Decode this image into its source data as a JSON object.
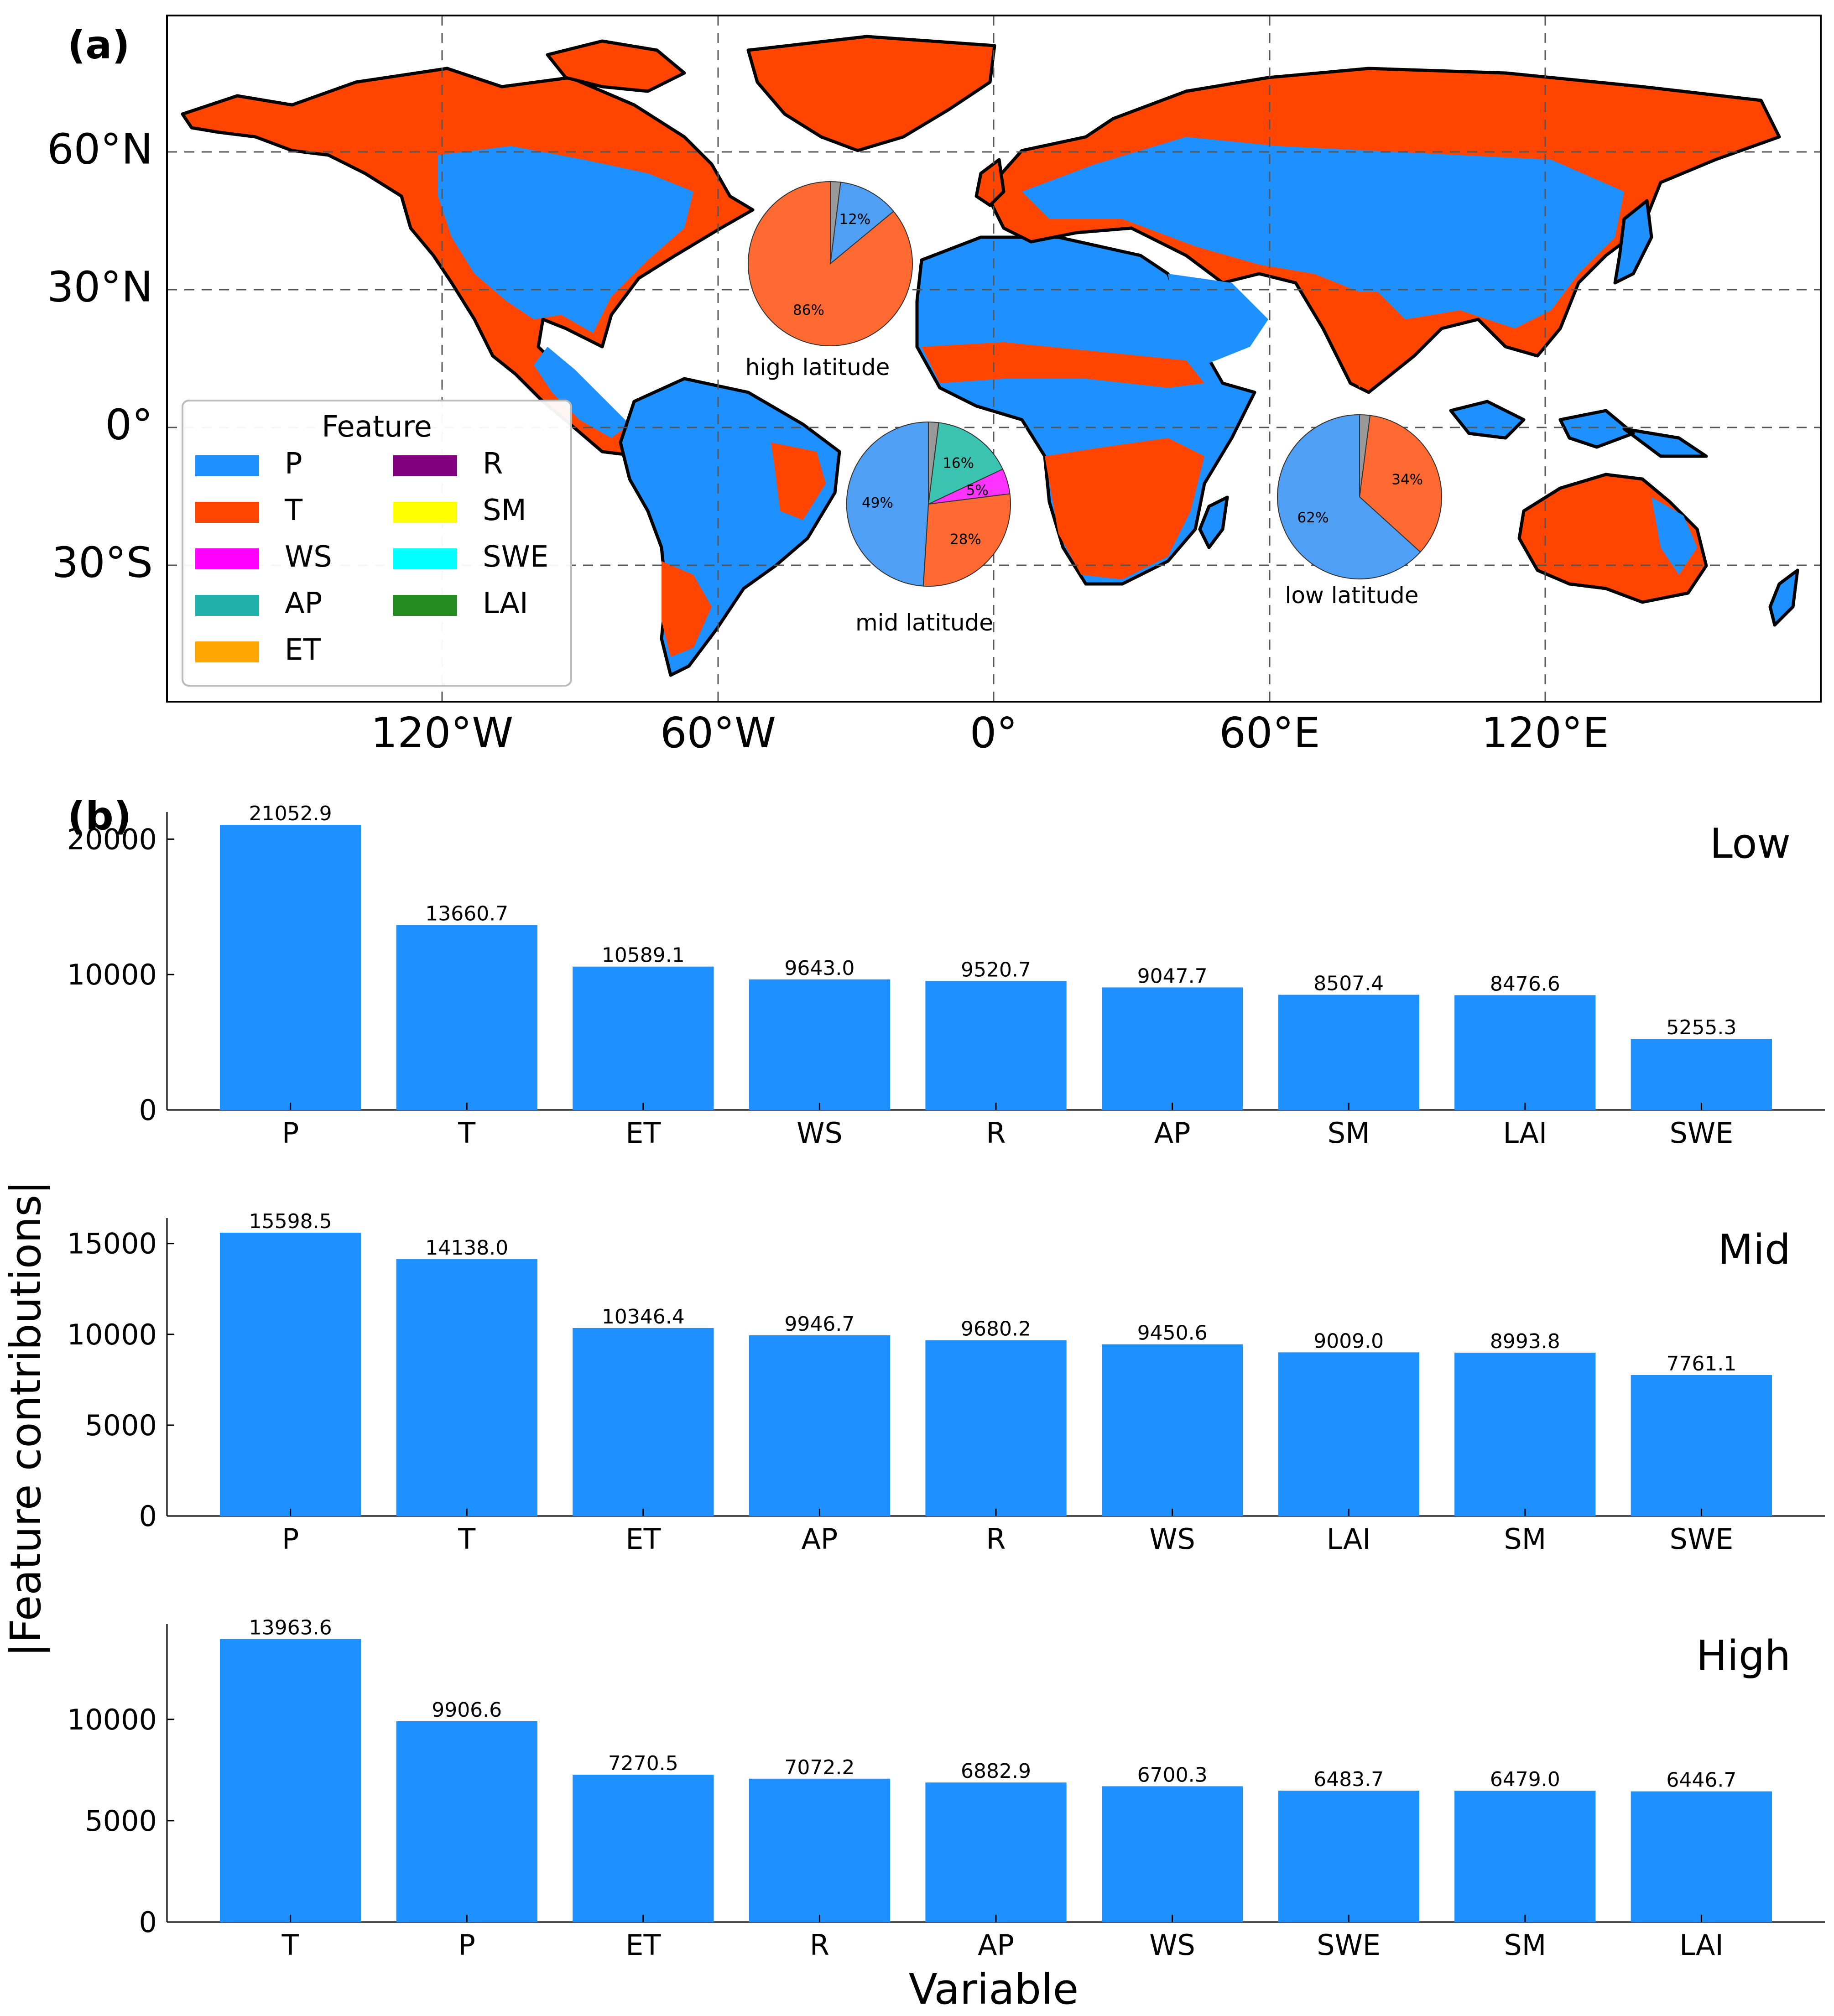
{
  "panel_a": {
    "letter": "(a)",
    "lat_labels": [
      "60°N",
      "30°N",
      "0°",
      "30°S"
    ],
    "lon_labels": [
      "120°W",
      "60°W",
      "0°",
      "60°E",
      "120°E"
    ],
    "legend": {
      "title": "Feature",
      "items": [
        {
          "label": "P",
          "color": "#1e90ff"
        },
        {
          "label": "T",
          "color": "#ff4500"
        },
        {
          "label": "WS",
          "color": "#ff00ff"
        },
        {
          "label": "AP",
          "color": "#20b2aa"
        },
        {
          "label": "ET",
          "color": "#ffa500"
        },
        {
          "label": "R",
          "color": "#800080"
        },
        {
          "label": "SM",
          "color": "#ffff00"
        },
        {
          "label": "SWE",
          "color": "#00ffff"
        },
        {
          "label": "LAI",
          "color": "#228b22"
        }
      ]
    },
    "pies": [
      {
        "name": "high latitude",
        "slices": [
          {
            "label": "12%",
            "value": 12,
            "color": "#4f9ff4"
          },
          {
            "label": "86%",
            "value": 86,
            "color": "#ff6a33"
          },
          {
            "label": "",
            "value": 2,
            "color": "#999999"
          }
        ]
      },
      {
        "name": "mid latitude",
        "slices": [
          {
            "label": "16%",
            "value": 16,
            "color": "#3cc2b0"
          },
          {
            "label": "5%",
            "value": 5,
            "color": "#ff33ff"
          },
          {
            "label": "28%",
            "value": 28,
            "color": "#ff6a33"
          },
          {
            "label": "49%",
            "value": 49,
            "color": "#4f9ff4"
          },
          {
            "label": "",
            "value": 2,
            "color": "#999999"
          }
        ]
      },
      {
        "name": "low latitude",
        "slices": [
          {
            "label": "34%",
            "value": 34,
            "color": "#ff6a33"
          },
          {
            "label": "62%",
            "value": 62,
            "color": "#4f9ff4"
          },
          {
            "label": "",
            "value": 2,
            "color": "#999999"
          }
        ]
      }
    ]
  },
  "panel_b": {
    "letter": "(b)",
    "ylabel": "|Feature contributions|",
    "xlabel": "Variable"
  },
  "chart_data": [
    {
      "type": "bar",
      "title": "Low",
      "xlabel": "",
      "ylabel": "|Feature contributions|",
      "categories": [
        "P",
        "T",
        "ET",
        "WS",
        "R",
        "AP",
        "SM",
        "LAI",
        "SWE"
      ],
      "values": [
        21052.9,
        13660.7,
        10589.1,
        9643.0,
        9520.7,
        9047.7,
        8507.4,
        8476.6,
        5255.3
      ],
      "value_labels": [
        "21052.9",
        "13660.7",
        "10589.1",
        "9643.0",
        "9520.7",
        "9047.7",
        "8507.4",
        "8476.6",
        "5255.3"
      ],
      "yticks": [
        0,
        10000,
        20000
      ],
      "ytick_labels": [
        "0",
        "10000",
        "20000"
      ],
      "ylim": [
        0,
        22000
      ],
      "color": "#1e90ff"
    },
    {
      "type": "bar",
      "title": "Mid",
      "xlabel": "",
      "ylabel": "|Feature contributions|",
      "categories": [
        "P",
        "T",
        "ET",
        "AP",
        "R",
        "WS",
        "LAI",
        "SM",
        "SWE"
      ],
      "values": [
        15598.5,
        14138.0,
        10346.4,
        9946.7,
        9680.2,
        9450.6,
        9009.0,
        8993.8,
        7761.1
      ],
      "value_labels": [
        "15598.5",
        "14138.0",
        "10346.4",
        "9946.7",
        "9680.2",
        "9450.6",
        "9009.0",
        "8993.8",
        "7761.1"
      ],
      "yticks": [
        0,
        5000,
        10000,
        15000
      ],
      "ytick_labels": [
        "0",
        "5000",
        "10000",
        "15000"
      ],
      "ylim": [
        0,
        16400
      ],
      "color": "#1e90ff"
    },
    {
      "type": "bar",
      "title": "High",
      "xlabel": "Variable",
      "ylabel": "|Feature contributions|",
      "categories": [
        "T",
        "P",
        "ET",
        "R",
        "AP",
        "WS",
        "SWE",
        "SM",
        "LAI"
      ],
      "values": [
        13963.6,
        9906.6,
        7270.5,
        7072.2,
        6882.9,
        6700.3,
        6483.7,
        6479.0,
        6446.7
      ],
      "value_labels": [
        "13963.6",
        "9906.6",
        "7270.5",
        "7072.2",
        "6882.9",
        "6700.3",
        "6483.7",
        "6479.0",
        "6446.7"
      ],
      "yticks": [
        0,
        5000,
        10000
      ],
      "ytick_labels": [
        "0",
        "5000",
        "10000"
      ],
      "ylim": [
        0,
        14700
      ],
      "color": "#1e90ff"
    }
  ]
}
